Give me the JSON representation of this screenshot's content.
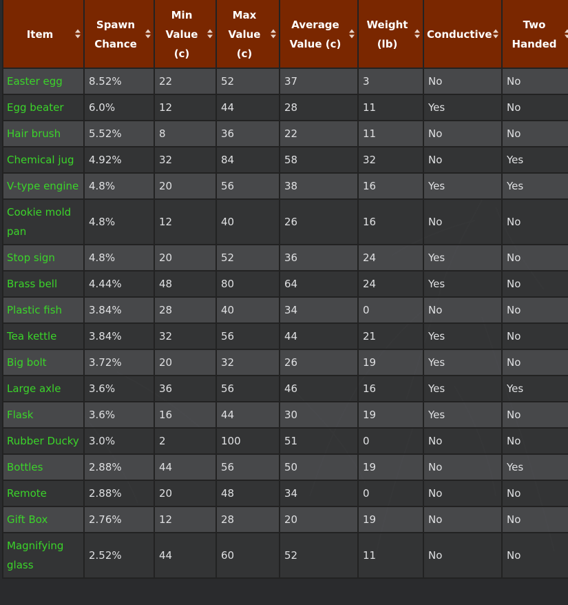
{
  "table": {
    "headers": [
      "Item",
      "Spawn Chance",
      "Min Value (c)",
      "Max Value (c)",
      "Average Value (c)",
      "Weight (lb)",
      "Conductive",
      "Two Handed"
    ],
    "rows": [
      [
        "Easter egg",
        "8.52%",
        "22",
        "52",
        "37",
        "3",
        "No",
        "No"
      ],
      [
        "Egg beater",
        "6.0%",
        "12",
        "44",
        "28",
        "11",
        "Yes",
        "No"
      ],
      [
        "Hair brush",
        "5.52%",
        "8",
        "36",
        "22",
        "11",
        "No",
        "No"
      ],
      [
        "Chemical jug",
        "4.92%",
        "32",
        "84",
        "58",
        "32",
        "No",
        "Yes"
      ],
      [
        "V-type engine",
        "4.8%",
        "20",
        "56",
        "38",
        "16",
        "Yes",
        "Yes"
      ],
      [
        "Cookie mold pan",
        "4.8%",
        "12",
        "40",
        "26",
        "16",
        "No",
        "No"
      ],
      [
        "Stop sign",
        "4.8%",
        "20",
        "52",
        "36",
        "24",
        "Yes",
        "No"
      ],
      [
        "Brass bell",
        "4.44%",
        "48",
        "80",
        "64",
        "24",
        "Yes",
        "No"
      ],
      [
        "Plastic fish",
        "3.84%",
        "28",
        "40",
        "34",
        "0",
        "No",
        "No"
      ],
      [
        "Tea kettle",
        "3.84%",
        "32",
        "56",
        "44",
        "21",
        "Yes",
        "No"
      ],
      [
        "Big bolt",
        "3.72%",
        "20",
        "32",
        "26",
        "19",
        "Yes",
        "No"
      ],
      [
        "Large axle",
        "3.6%",
        "36",
        "56",
        "46",
        "16",
        "Yes",
        "Yes"
      ],
      [
        "Flask",
        "3.6%",
        "16",
        "44",
        "30",
        "19",
        "Yes",
        "No"
      ],
      [
        "Rubber Ducky",
        "3.0%",
        "2",
        "100",
        "51",
        "0",
        "No",
        "No"
      ],
      [
        "Bottles",
        "2.88%",
        "44",
        "56",
        "50",
        "19",
        "No",
        "Yes"
      ],
      [
        "Remote",
        "2.88%",
        "20",
        "48",
        "34",
        "0",
        "No",
        "No"
      ],
      [
        "Gift Box",
        "2.76%",
        "12",
        "28",
        "20",
        "19",
        "No",
        "No"
      ],
      [
        "Magnifying glass",
        "2.52%",
        "44",
        "60",
        "52",
        "11",
        "No",
        "No"
      ]
    ]
  },
  "colors": {
    "header_bg": "#7a2700",
    "item_link": "#3bd42a",
    "cell_text": "#dfe0e2"
  }
}
